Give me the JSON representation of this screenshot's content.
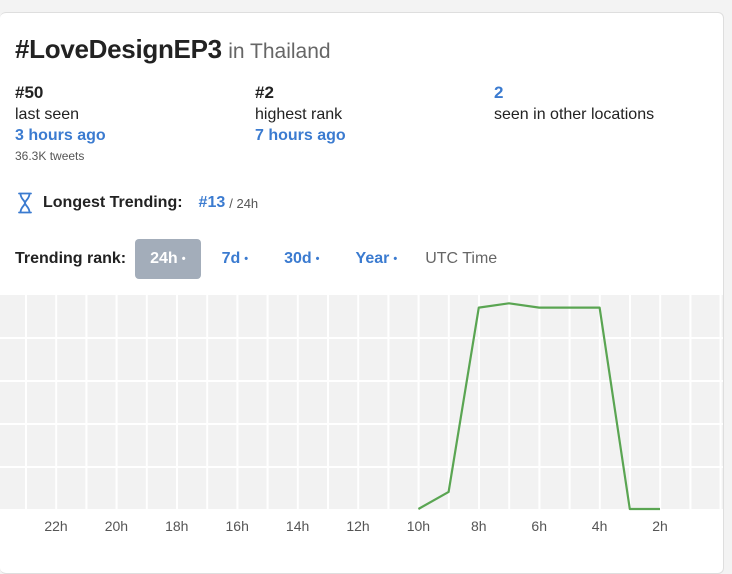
{
  "hashtag": "#LoveDesignEP3",
  "location": "in Thailand",
  "stats": {
    "last": {
      "value": "#50",
      "label": "last seen",
      "when": "3 hours ago",
      "tweets": "36.3K tweets"
    },
    "highest": {
      "value": "#2",
      "label": "highest rank",
      "when": "7 hours ago"
    },
    "other": {
      "value": "2",
      "label": "seen in other locations"
    }
  },
  "longest": {
    "label": "Longest Trending:",
    "rank": "#13",
    "period": "/ 24h"
  },
  "trending": {
    "label": "Trending rank:",
    "ranges": [
      {
        "label": "24h",
        "active": true
      },
      {
        "label": "7d",
        "active": false
      },
      {
        "label": "30d",
        "active": false
      },
      {
        "label": "Year",
        "active": false
      }
    ],
    "dot": "•",
    "utc": "UTC Time"
  },
  "colors": {
    "line": "#5aa552",
    "link": "#3b7bd0",
    "active_pill": "#a3adba"
  },
  "chart_data": {
    "type": "line",
    "x": [
      "10h",
      "9h",
      "8h",
      "7h",
      "6h",
      "5h",
      "4h",
      "3h",
      "2h"
    ],
    "x_tick_labels": [
      "22h",
      "20h",
      "18h",
      "16h",
      "14h",
      "12h",
      "10h",
      "8h",
      "6h",
      "4h",
      "2h"
    ],
    "y_rank": [
      50,
      46,
      3,
      2,
      3,
      3,
      3,
      50,
      50
    ],
    "ylim": [
      50,
      1
    ],
    "grid": true
  }
}
